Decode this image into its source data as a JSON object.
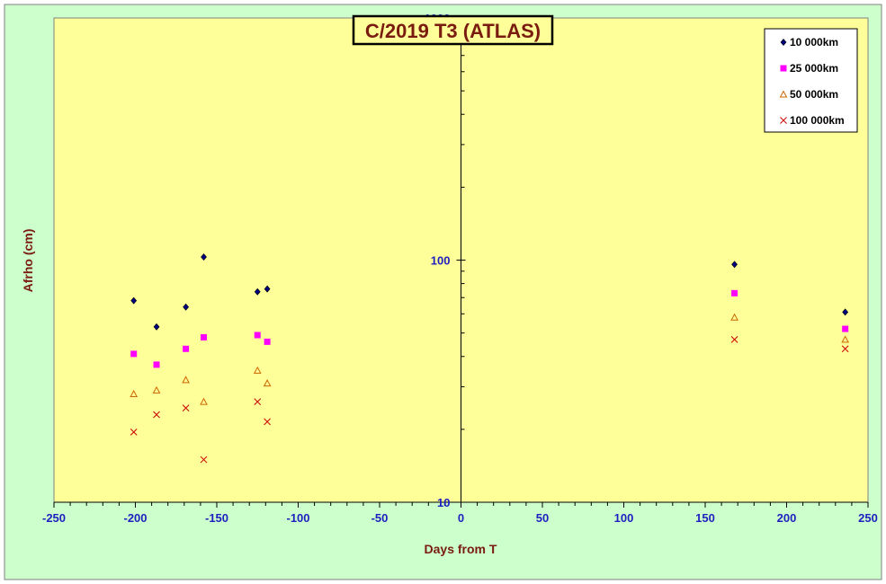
{
  "chart_data": {
    "type": "scatter",
    "title": "C/2019 T3 (ATLAS)",
    "xlabel": "Days from T",
    "ylabel": "Afrho (cm)",
    "xlim": [
      -250,
      250
    ],
    "ylim": [
      10,
      1000
    ],
    "yscale": "log",
    "x_ticks": [
      -250,
      -200,
      -150,
      -100,
      -50,
      0,
      50,
      100,
      150,
      200,
      250
    ],
    "y_ticks": [
      10,
      100,
      1000
    ],
    "legend_position": "top-right",
    "colors": {
      "outer_background": "#ccffcc",
      "plot_background": "#ffff99",
      "tick_label": "#1f1fbf",
      "axis_title": "#7a1b10",
      "title": "#7a1b10"
    },
    "series": [
      {
        "name": "10 000km",
        "marker": "diamond",
        "color": "#000080",
        "x": [
          -201,
          -187,
          -169,
          -158,
          -125,
          -119,
          168,
          236
        ],
        "y": [
          68,
          53,
          64,
          103,
          74,
          76,
          96,
          61
        ]
      },
      {
        "name": "25 000km",
        "marker": "square",
        "color": "#ff00ff",
        "x": [
          -201,
          -187,
          -169,
          -158,
          -125,
          -119,
          168,
          236
        ],
        "y": [
          41,
          37,
          43,
          48,
          49,
          46,
          73,
          52
        ]
      },
      {
        "name": "50 000km",
        "marker": "triangle",
        "color": "#cc6600",
        "x": [
          -201,
          -187,
          -169,
          -158,
          -125,
          -119,
          168,
          236
        ],
        "y": [
          28,
          29,
          32,
          26,
          35,
          31,
          58,
          47
        ]
      },
      {
        "name": "100 000km",
        "marker": "x",
        "color": "#cc0000",
        "x": [
          -201,
          -187,
          -169,
          -158,
          -125,
          -119,
          168,
          236
        ],
        "y": [
          19.5,
          23,
          24.5,
          15,
          26,
          21.5,
          47,
          43
        ]
      }
    ]
  }
}
